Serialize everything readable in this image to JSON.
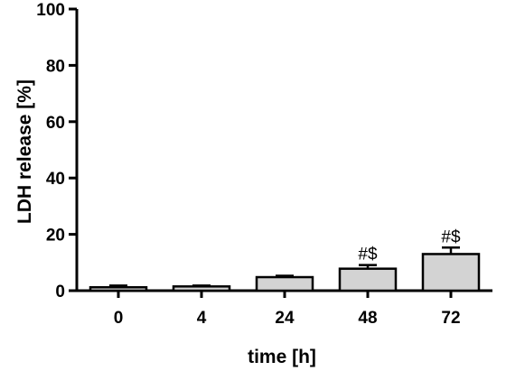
{
  "chart_data": {
    "type": "bar",
    "categories": [
      "0",
      "4",
      "24",
      "48",
      "72"
    ],
    "values": [
      1.2,
      1.5,
      4.8,
      7.8,
      13.0
    ],
    "errors": [
      0.6,
      0.3,
      0.5,
      1.3,
      2.3
    ],
    "annotations": [
      "",
      "",
      "",
      "#$",
      "#$"
    ],
    "xlabel": "time [h]",
    "ylabel": "LDH release [%]",
    "ylim": [
      0,
      100
    ],
    "yticks": [
      0,
      20,
      40,
      60,
      80,
      100
    ],
    "grid": false,
    "bar_color": "#d3d3d3",
    "edge_color": "#000000"
  }
}
